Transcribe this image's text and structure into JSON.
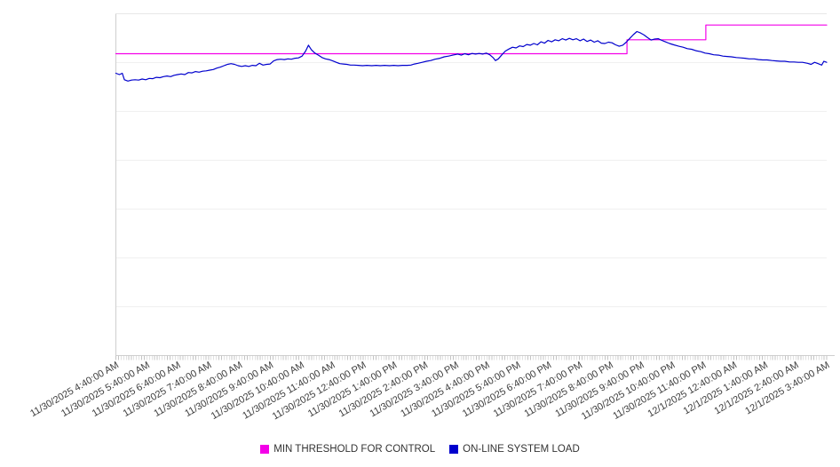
{
  "chart_data": {
    "type": "line",
    "title": "",
    "xlabel": "",
    "ylabel": "",
    "grid": "horizontal",
    "legend_position": "bottom-center",
    "x_encoding": "percent 0-100 across the time axis (11/30/2025 4:40:00 AM to 12/1/2025 3:40:00 AM)",
    "y_encoding": "percent 0-100 of plot height (y-axis shown without numeric labels)",
    "ylim": [
      0,
      100
    ],
    "y_axis": {
      "divisions": 7,
      "labels_visible": false
    },
    "x_axis": {
      "minor_tick_count": 277,
      "tick_labels": [
        "11/30/2025 4:40:00 AM",
        "11/30/2025 5:40:00 AM",
        "11/30/2025 6:40:00 AM",
        "11/30/2025 7:40:00 AM",
        "11/30/2025 8:40:00 AM",
        "11/30/2025 9:40:00 AM",
        "11/30/2025 10:40:00 AM",
        "11/30/2025 11:40:00 AM",
        "11/30/2025 12:40:00 PM",
        "11/30/2025 1:40:00 PM",
        "11/30/2025 2:40:00 PM",
        "11/30/2025 3:40:00 PM",
        "11/30/2025 4:40:00 PM",
        "11/30/2025 5:40:00 PM",
        "11/30/2025 6:40:00 PM",
        "11/30/2025 7:40:00 PM",
        "11/30/2025 8:40:00 PM",
        "11/30/2025 9:40:00 PM",
        "11/30/2025 10:40:00 PM",
        "11/30/2025 11:40:00 PM",
        "12/1/2025 12:40:00 AM",
        "12/1/2025 1:40:00 AM",
        "12/1/2025 2:40:00 AM",
        "12/1/2025 3:40:00 AM"
      ]
    },
    "series": [
      {
        "name": "MIN THRESHOLD FOR CONTROL",
        "color": "#F400E8",
        "style": "step",
        "points": [
          [
            0,
            88.3
          ],
          [
            71.9,
            88.3
          ],
          [
            71.9,
            92.4
          ],
          [
            83.0,
            92.4
          ],
          [
            83.0,
            96.7
          ],
          [
            100,
            96.7
          ]
        ]
      },
      {
        "name": "ON-LINE SYSTEM LOAD",
        "color": "#0000CD",
        "style": "line",
        "points": [
          [
            0,
            82.6
          ],
          [
            0.5,
            82.2
          ],
          [
            0.9,
            82.6
          ],
          [
            1.2,
            80.7
          ],
          [
            1.7,
            80.3
          ],
          [
            2.2,
            80.6
          ],
          [
            2.7,
            80.7
          ],
          [
            3.2,
            80.6
          ],
          [
            3.7,
            80.9
          ],
          [
            4.2,
            80.7
          ],
          [
            4.7,
            81.1
          ],
          [
            5.2,
            81.0
          ],
          [
            5.7,
            81.4
          ],
          [
            6.2,
            81.3
          ],
          [
            6.7,
            81.6
          ],
          [
            7.2,
            81.8
          ],
          [
            7.7,
            81.6
          ],
          [
            8.2,
            82.0
          ],
          [
            8.7,
            82.2
          ],
          [
            9.2,
            82.4
          ],
          [
            9.7,
            82.2
          ],
          [
            10.2,
            82.8
          ],
          [
            10.7,
            82.7
          ],
          [
            11.2,
            83.1
          ],
          [
            11.7,
            82.9
          ],
          [
            12.2,
            83.2
          ],
          [
            12.7,
            83.3
          ],
          [
            13.2,
            83.5
          ],
          [
            13.7,
            83.7
          ],
          [
            14.2,
            84.1
          ],
          [
            14.7,
            84.4
          ],
          [
            15.2,
            84.8
          ],
          [
            15.7,
            85.2
          ],
          [
            16.2,
            85.4
          ],
          [
            16.7,
            85.2
          ],
          [
            17.2,
            84.8
          ],
          [
            17.7,
            84.6
          ],
          [
            18.2,
            84.8
          ],
          [
            18.7,
            84.6
          ],
          [
            19.2,
            84.9
          ],
          [
            19.7,
            84.8
          ],
          [
            20.2,
            85.5
          ],
          [
            20.7,
            85.0
          ],
          [
            21.2,
            85.2
          ],
          [
            21.7,
            85.3
          ],
          [
            22.2,
            86.2
          ],
          [
            22.7,
            86.6
          ],
          [
            23.2,
            86.7
          ],
          [
            23.7,
            86.6
          ],
          [
            24.2,
            86.8
          ],
          [
            24.7,
            86.7
          ],
          [
            25.2,
            87.0
          ],
          [
            25.7,
            87.1
          ],
          [
            26.2,
            87.6
          ],
          [
            26.7,
            89.1
          ],
          [
            27.1,
            90.8
          ],
          [
            27.5,
            89.5
          ],
          [
            28.0,
            88.5
          ],
          [
            28.5,
            87.9
          ],
          [
            29.0,
            87.2
          ],
          [
            29.5,
            86.8
          ],
          [
            30.0,
            86.6
          ],
          [
            30.5,
            86.2
          ],
          [
            31.0,
            85.8
          ],
          [
            31.5,
            85.4
          ],
          [
            32.0,
            85.3
          ],
          [
            32.5,
            85.2
          ],
          [
            33.0,
            85.0
          ],
          [
            33.5,
            85.0
          ],
          [
            34.1,
            84.9
          ],
          [
            34.7,
            84.8
          ],
          [
            35.3,
            84.9
          ],
          [
            36.0,
            84.8
          ],
          [
            36.6,
            84.9
          ],
          [
            37.2,
            84.8
          ],
          [
            37.8,
            84.9
          ],
          [
            38.5,
            84.8
          ],
          [
            39.1,
            84.9
          ],
          [
            39.7,
            84.8
          ],
          [
            40.3,
            84.9
          ],
          [
            41.0,
            84.9
          ],
          [
            41.5,
            85.0
          ],
          [
            42.0,
            85.3
          ],
          [
            42.5,
            85.5
          ],
          [
            43.1,
            85.8
          ],
          [
            43.7,
            86.1
          ],
          [
            44.3,
            86.3
          ],
          [
            44.9,
            86.7
          ],
          [
            45.6,
            87.0
          ],
          [
            46.2,
            87.4
          ],
          [
            46.8,
            87.6
          ],
          [
            47.4,
            87.9
          ],
          [
            48.1,
            88.2
          ],
          [
            48.6,
            87.9
          ],
          [
            49.1,
            88.3
          ],
          [
            49.6,
            88.0
          ],
          [
            50.1,
            88.4
          ],
          [
            50.6,
            88.2
          ],
          [
            51.1,
            88.4
          ],
          [
            51.6,
            88.2
          ],
          [
            52.1,
            88.5
          ],
          [
            52.6,
            88.0
          ],
          [
            53.1,
            87.1
          ],
          [
            53.4,
            86.3
          ],
          [
            53.8,
            86.8
          ],
          [
            54.3,
            88.0
          ],
          [
            54.8,
            89.1
          ],
          [
            55.3,
            89.7
          ],
          [
            55.8,
            90.2
          ],
          [
            56.3,
            90.0
          ],
          [
            56.8,
            90.6
          ],
          [
            57.3,
            90.4
          ],
          [
            57.8,
            91.0
          ],
          [
            58.3,
            90.8
          ],
          [
            58.8,
            91.3
          ],
          [
            59.3,
            90.9
          ],
          [
            59.8,
            91.8
          ],
          [
            60.3,
            91.4
          ],
          [
            60.8,
            92.2
          ],
          [
            61.3,
            91.8
          ],
          [
            61.8,
            92.4
          ],
          [
            62.3,
            92.1
          ],
          [
            62.8,
            92.7
          ],
          [
            63.3,
            92.3
          ],
          [
            63.8,
            92.8
          ],
          [
            64.3,
            92.4
          ],
          [
            64.8,
            92.7
          ],
          [
            65.3,
            92.1
          ],
          [
            65.8,
            92.6
          ],
          [
            66.3,
            91.9
          ],
          [
            66.8,
            92.3
          ],
          [
            67.3,
            91.7
          ],
          [
            67.8,
            92.1
          ],
          [
            68.3,
            91.4
          ],
          [
            68.8,
            91.3
          ],
          [
            69.3,
            91.7
          ],
          [
            69.8,
            91.5
          ],
          [
            70.3,
            90.9
          ],
          [
            70.8,
            90.5
          ],
          [
            71.3,
            90.8
          ],
          [
            71.8,
            91.7
          ],
          [
            72.3,
            92.8
          ],
          [
            72.8,
            93.9
          ],
          [
            73.3,
            94.8
          ],
          [
            73.8,
            94.4
          ],
          [
            74.3,
            93.8
          ],
          [
            74.8,
            93.0
          ],
          [
            75.3,
            92.3
          ],
          [
            75.8,
            92.6
          ],
          [
            76.3,
            92.7
          ],
          [
            76.8,
            92.2
          ],
          [
            77.3,
            91.8
          ],
          [
            77.9,
            91.3
          ],
          [
            78.5,
            90.9
          ],
          [
            79.2,
            90.5
          ],
          [
            79.8,
            90.2
          ],
          [
            80.4,
            89.8
          ],
          [
            81.0,
            89.6
          ],
          [
            81.6,
            89.2
          ],
          [
            82.3,
            88.9
          ],
          [
            82.9,
            88.5
          ],
          [
            83.5,
            88.3
          ],
          [
            84.1,
            88.0
          ],
          [
            84.8,
            87.9
          ],
          [
            85.4,
            87.6
          ],
          [
            86.0,
            87.5
          ],
          [
            86.6,
            87.4
          ],
          [
            87.3,
            87.2
          ],
          [
            87.9,
            87.1
          ],
          [
            88.5,
            87.0
          ],
          [
            89.1,
            86.8
          ],
          [
            89.8,
            86.8
          ],
          [
            90.4,
            86.6
          ],
          [
            91.0,
            86.5
          ],
          [
            91.6,
            86.5
          ],
          [
            92.3,
            86.3
          ],
          [
            92.9,
            86.2
          ],
          [
            93.5,
            86.1
          ],
          [
            94.1,
            86.1
          ],
          [
            94.8,
            85.9
          ],
          [
            95.4,
            85.9
          ],
          [
            96.0,
            85.8
          ],
          [
            96.6,
            85.8
          ],
          [
            97.3,
            85.5
          ],
          [
            97.8,
            85.2
          ],
          [
            98.3,
            85.8
          ],
          [
            98.8,
            85.4
          ],
          [
            99.3,
            85.0
          ],
          [
            99.6,
            86.1
          ],
          [
            100,
            85.8
          ]
        ]
      }
    ],
    "colors": {
      "gridline": "#F0F0F0",
      "plot_top_border": "#E7E7E7",
      "axis": "#CFCFCF",
      "minor_tick": "#C4C4C4",
      "tick_label_text": "#3D3D3D",
      "legend_text": "#333333",
      "background": "#FFFFFF"
    }
  }
}
